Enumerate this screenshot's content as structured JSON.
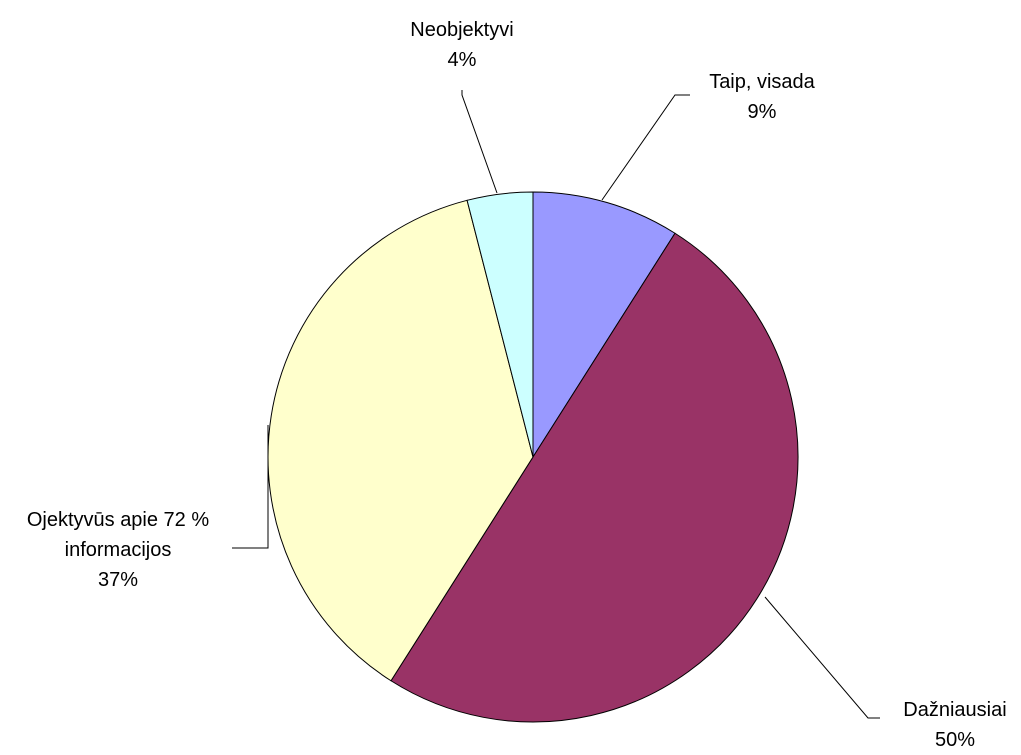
{
  "chart_data": {
    "type": "pie",
    "categories": [
      "Taip, visada",
      "Dažniausiai",
      "Ojektyvūs apie 72 % informacijos",
      "Neobjektyvi"
    ],
    "values": [
      9,
      50,
      37,
      4
    ],
    "value_labels": [
      "9%",
      "50%",
      "37%",
      "4%"
    ],
    "colors": [
      "#9999ff",
      "#993366",
      "#ffffcc",
      "#ccffff"
    ]
  }
}
